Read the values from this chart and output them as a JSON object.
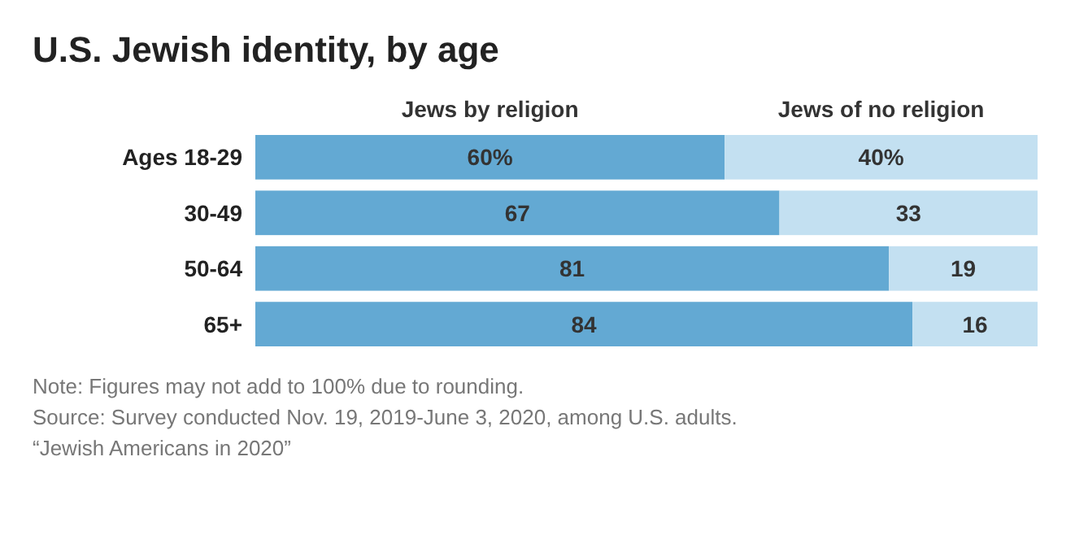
{
  "chart_data": {
    "type": "bar",
    "orientation": "horizontal",
    "stacked": true,
    "title": "U.S. Jewish identity, by age",
    "categories": [
      "Ages 18-29",
      "30-49",
      "50-64",
      "65+"
    ],
    "xlim": [
      0,
      100
    ],
    "tick_labels": false,
    "legend": "top",
    "series": [
      {
        "name": "Jews by religion",
        "color": "#63a9d3",
        "values": [
          60,
          67,
          81,
          84
        ],
        "value_labels": [
          "60%",
          "67",
          "81",
          "84"
        ]
      },
      {
        "name": "Jews of no religion",
        "color": "#c3e0f1",
        "values": [
          40,
          33,
          19,
          16
        ],
        "value_labels": [
          "40%",
          "33",
          "19",
          "16"
        ]
      }
    ],
    "annotations": [
      "Note: Figures may not add to 100% due to rounding.",
      "Source: Survey conducted Nov. 19, 2019-June 3, 2020, among U.S. adults.",
      "“Jewish Americans in 2020”"
    ]
  }
}
